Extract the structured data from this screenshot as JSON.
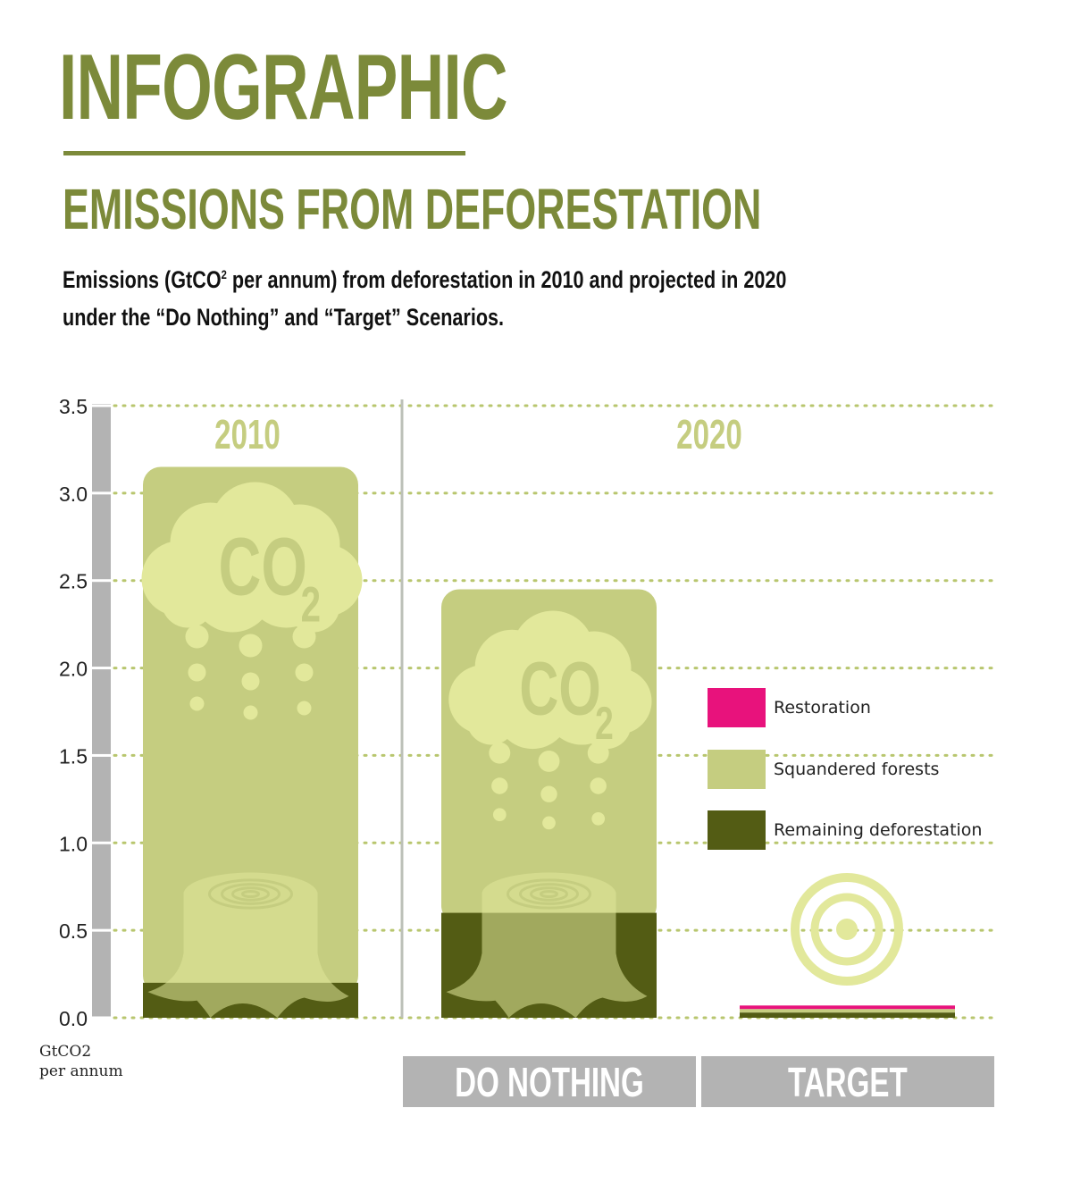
{
  "header": {
    "kicker": "INFOGRAPHIC",
    "title": "EMISSIONS FROM DEFORESTATION",
    "subtitle_line1_before": "Emissions (GtCO",
    "subtitle_sup": "2",
    "subtitle_line1_after": " per annum) from deforestation in 2010 and projected in 2020",
    "subtitle_line2": "under the “Do Nothing” and “Target”  Scenarios."
  },
  "colors": {
    "olive_text": "#7c8a3a",
    "restoration": "#e8127c",
    "squandered_forests": "#c5cd80",
    "remaining_deforestation": "#535c14",
    "icon_light": "#e2e89b",
    "axis_bar": "#b3b3b3",
    "grid_dots": "#b8c66e"
  },
  "chart_data": {
    "type": "bar",
    "stacked": true,
    "groups": [
      {
        "label": "2010",
        "categories": [
          "2010"
        ]
      },
      {
        "label": "2020",
        "categories": [
          "DO NOTHING",
          "TARGET"
        ]
      }
    ],
    "categories": [
      "2010",
      "DO NOTHING",
      "TARGET"
    ],
    "category_labels": [
      "",
      "DO NOTHING",
      "TARGET"
    ],
    "series": [
      {
        "name": "Remaining deforestation",
        "values": [
          0.2,
          0.6,
          0.03
        ]
      },
      {
        "name": "Squandered forests",
        "values": [
          2.95,
          1.85,
          0.02
        ]
      },
      {
        "name": "Restoration",
        "values": [
          0,
          0,
          0.02
        ]
      }
    ],
    "legend_order": [
      "Restoration",
      "Squandered forests",
      "Remaining deforestation"
    ],
    "legend_position": "right",
    "ylim": [
      0,
      3.5
    ],
    "yticks": [
      "0.0",
      "0.5",
      "1.0",
      "1.5",
      "2.0",
      "2.5",
      "3.0",
      "3.5"
    ],
    "ylabel_line1": "GtCO2",
    "ylabel_line2": "per annum",
    "grid": true,
    "icon_text": {
      "co2": "CO",
      "co2_sub": "2"
    }
  }
}
